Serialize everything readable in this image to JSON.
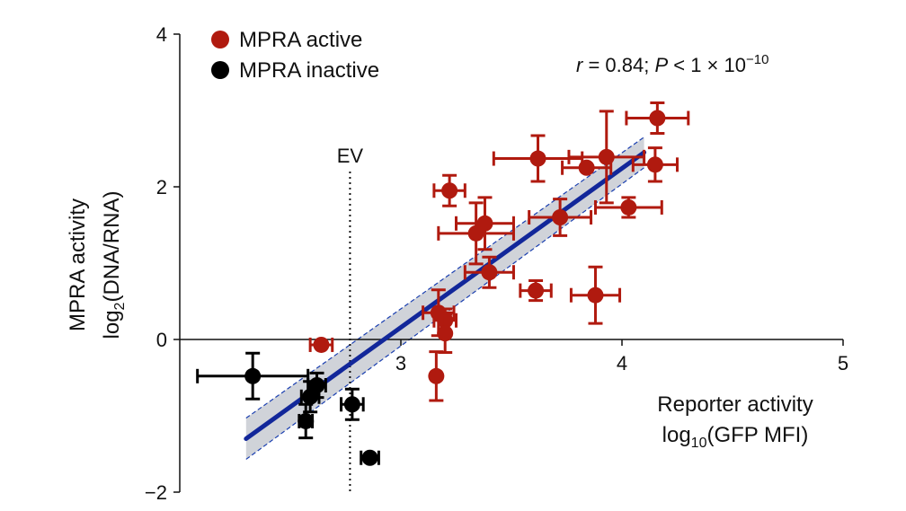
{
  "chart_data": {
    "type": "scatter",
    "xlabel_line1": "Reporter activity",
    "xlabel_line2": "log",
    "xlabel_line2_sub": "10",
    "xlabel_line2_rest": "(GFP MFI)",
    "ylabel_line1": "MPRA activity",
    "ylabel_line2": "log",
    "ylabel_line2_sub": "2",
    "ylabel_line2_rest": "(DNA/RNA)",
    "xlim": [
      2.0,
      5.0
    ],
    "ylim": [
      -2.0,
      4.0
    ],
    "x_ticks": [
      {
        "value": 3,
        "label": "3"
      },
      {
        "value": 4,
        "label": "4"
      },
      {
        "value": 5,
        "label": "5"
      }
    ],
    "y_ticks": [
      {
        "value": 4,
        "label": "4"
      },
      {
        "value": 2,
        "label": "2"
      },
      {
        "value": 0,
        "label": "0"
      },
      {
        "value": -2,
        "label": "−2"
      }
    ],
    "annotation": {
      "r_symbol": "r",
      "r_text": " = 0.84; ",
      "p_symbol": "P",
      "p_text": " < 1 × 10",
      "p_exp": "−10"
    },
    "ev_label": "EV",
    "ev_x": 2.77,
    "fit": {
      "x": [
        2.3,
        4.1
      ],
      "y": [
        -1.3,
        2.45
      ],
      "ci_half_width_low": 0.27,
      "ci_half_width_high": 0.2
    },
    "legend": [
      {
        "label": "MPRA active",
        "color": "#b01a0f"
      },
      {
        "label": "MPRA inactive",
        "color": "#000000"
      }
    ],
    "series": [
      {
        "name": "MPRA active",
        "color": "#b01a0f",
        "points": [
          {
            "x": 4.16,
            "y": 2.9,
            "xerr": 0.14,
            "yerr": 0.2
          },
          {
            "x": 3.62,
            "y": 2.37,
            "xerr": 0.2,
            "yerr": 0.3
          },
          {
            "x": 3.84,
            "y": 2.25,
            "xerr": 0.11,
            "yerr": 0.0
          },
          {
            "x": 3.93,
            "y": 2.39,
            "xerr": 0.17,
            "yerr": 0.6
          },
          {
            "x": 4.15,
            "y": 2.29,
            "xerr": 0.1,
            "yerr": 0.22
          },
          {
            "x": 3.22,
            "y": 1.95,
            "xerr": 0.07,
            "yerr": 0.2
          },
          {
            "x": 3.38,
            "y": 1.52,
            "xerr": 0.13,
            "yerr": 0.34
          },
          {
            "x": 3.34,
            "y": 1.39,
            "xerr": 0.17,
            "yerr": 0.4
          },
          {
            "x": 3.72,
            "y": 1.6,
            "xerr": 0.14,
            "yerr": 0.24
          },
          {
            "x": 4.03,
            "y": 1.73,
            "xerr": 0.15,
            "yerr": 0.13
          },
          {
            "x": 3.4,
            "y": 0.88,
            "xerr": 0.11,
            "yerr": 0.2
          },
          {
            "x": 3.61,
            "y": 0.64,
            "xerr": 0.07,
            "yerr": 0.13
          },
          {
            "x": 3.88,
            "y": 0.58,
            "xerr": 0.11,
            "yerr": 0.37
          },
          {
            "x": 3.17,
            "y": 0.35,
            "xerr": 0.07,
            "yerr": 0.3
          },
          {
            "x": 3.2,
            "y": 0.25,
            "xerr": 0.05,
            "yerr": 0.15
          },
          {
            "x": 3.2,
            "y": 0.08,
            "xerr": 0.0,
            "yerr": 0.25
          },
          {
            "x": 3.16,
            "y": -0.48,
            "xerr": 0.0,
            "yerr": 0.32
          },
          {
            "x": 2.64,
            "y": -0.07,
            "xerr": 0.05,
            "yerr": 0.0
          }
        ]
      },
      {
        "name": "MPRA inactive",
        "color": "#000000",
        "points": [
          {
            "x": 2.33,
            "y": -0.48,
            "xerr": 0.25,
            "yerr": 0.3
          },
          {
            "x": 2.62,
            "y": -0.6,
            "xerr": 0.04,
            "yerr": 0.16
          },
          {
            "x": 2.59,
            "y": -0.75,
            "xerr": 0.04,
            "yerr": 0.2
          },
          {
            "x": 2.57,
            "y": -1.07,
            "xerr": 0.03,
            "yerr": 0.22
          },
          {
            "x": 2.78,
            "y": -0.85,
            "xerr": 0.05,
            "yerr": 0.2
          },
          {
            "x": 2.86,
            "y": -1.55,
            "xerr": 0.04,
            "yerr": 0.0
          }
        ]
      }
    ]
  }
}
